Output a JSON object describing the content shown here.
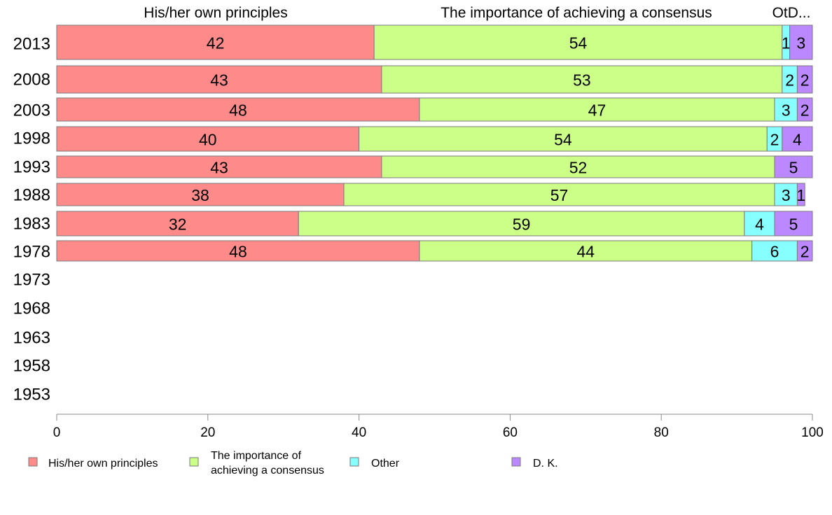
{
  "chart_data": {
    "type": "bar",
    "orientation": "horizontal",
    "stacked": true,
    "categories": [
      "2013",
      "2008",
      "2003",
      "1998",
      "1993",
      "1988",
      "1983",
      "1978",
      "1973",
      "1968",
      "1963",
      "1958",
      "1953"
    ],
    "series": [
      {
        "name": "His/her own principles",
        "color": "#ff8a8a",
        "values": [
          42,
          43,
          48,
          40,
          43,
          38,
          32,
          48,
          null,
          null,
          null,
          null,
          null
        ]
      },
      {
        "name": "The importance of achieving a consensus",
        "color": "#ccff88",
        "values": [
          54,
          53,
          47,
          54,
          52,
          57,
          59,
          44,
          null,
          null,
          null,
          null,
          null
        ]
      },
      {
        "name": "Other",
        "color": "#88ffff",
        "values": [
          1,
          2,
          3,
          2,
          0,
          3,
          4,
          6,
          null,
          null,
          null,
          null,
          null
        ]
      },
      {
        "name": "D. K.",
        "color": "#bb88ff",
        "values": [
          3,
          2,
          2,
          4,
          5,
          1,
          5,
          2,
          null,
          null,
          null,
          null,
          null
        ]
      }
    ],
    "bar_labels": [
      [
        "42",
        "54",
        "1",
        "3"
      ],
      [
        "43",
        "53",
        "2",
        "2"
      ],
      [
        "48",
        "47",
        "3",
        "2"
      ],
      [
        "40",
        "54",
        "2",
        "4"
      ],
      [
        "43",
        "52",
        "",
        "5"
      ],
      [
        "38",
        "57",
        "3",
        "1"
      ],
      [
        "32",
        "59",
        "4",
        "5"
      ],
      [
        "48",
        "44",
        "6",
        "2"
      ]
    ],
    "column_titles": [
      "His/her own principles",
      "The importance of achieving a consensus",
      "OtD..."
    ],
    "legend_labels": [
      [
        "His/her own principles"
      ],
      [
        "The importance of",
        "achieving a consensus"
      ],
      [
        "Other"
      ],
      [
        "D. K."
      ]
    ],
    "xlim": [
      0,
      100
    ],
    "xticks": [
      "0",
      "20",
      "40",
      "60",
      "80",
      "100"
    ],
    "grid": false,
    "legend_position": "bottom"
  }
}
